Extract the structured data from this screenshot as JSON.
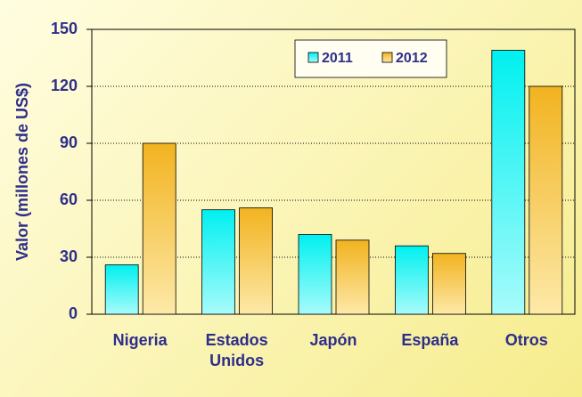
{
  "chart_data": {
    "type": "bar",
    "y_label": "Valor (millones de US$)",
    "categories": [
      "Nigeria",
      "Estados Unidos",
      "Japón",
      "España",
      "Otros"
    ],
    "series": [
      {
        "name": "2011",
        "color": "#00f0f0",
        "values": [
          26,
          55,
          42,
          36,
          139
        ]
      },
      {
        "name": "2012",
        "color": "#f2b320",
        "values": [
          90,
          56,
          39,
          32,
          120
        ]
      }
    ],
    "ylim": [
      0,
      150
    ],
    "yticks": [
      0,
      30,
      60,
      90,
      120,
      150
    ],
    "grid": true,
    "legend": "top-right"
  }
}
